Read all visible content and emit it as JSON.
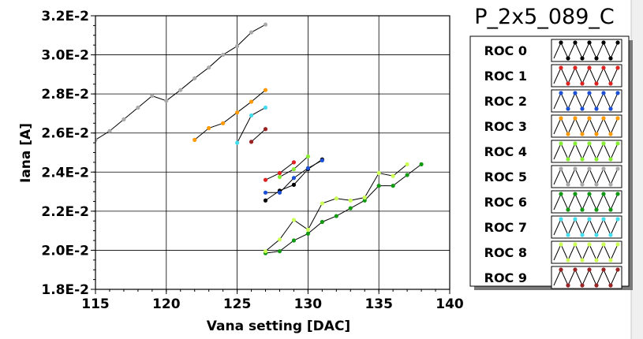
{
  "chart_data": {
    "type": "scatter",
    "title": "P_2x5_089_C",
    "xlabel": "Vana setting [DAC]",
    "ylabel": "Iana [A]",
    "xlim": [
      115,
      140
    ],
    "ylim": [
      0.018,
      0.032
    ],
    "x_ticks": [
      115,
      120,
      125,
      130,
      135,
      140
    ],
    "x_tick_labels": [
      "115",
      "120",
      "125",
      "130",
      "135",
      "140"
    ],
    "y_ticks": [
      0.018,
      0.02,
      0.022,
      0.024,
      0.026,
      0.028,
      0.03,
      0.032
    ],
    "y_tick_labels": [
      "1.8E-2",
      "2.0E-2",
      "2.2E-2",
      "2.4E-2",
      "2.6E-2",
      "2.8E-2",
      "3.0E-2",
      "3.2E-2"
    ],
    "grid": true,
    "legend_position": "right",
    "series": [
      {
        "name": "ROC 0",
        "color": "#000000",
        "x": [
          127,
          128,
          129,
          130,
          131
        ],
        "y": [
          0.02255,
          0.02305,
          0.02335,
          0.02415,
          0.02465
        ]
      },
      {
        "name": "ROC 1",
        "color": "#dd2222",
        "x": [
          127,
          128,
          129
        ],
        "y": [
          0.0236,
          0.02395,
          0.0245
        ]
      },
      {
        "name": "ROC 2",
        "color": "#1a4fd6",
        "x": [
          127,
          128,
          129,
          130,
          131
        ],
        "y": [
          0.02295,
          0.02295,
          0.0237,
          0.0242,
          0.0246
        ]
      },
      {
        "name": "ROC 3",
        "color": "#ff9900",
        "x": [
          122,
          123,
          124,
          125,
          126,
          127
        ],
        "y": [
          0.02565,
          0.02625,
          0.0265,
          0.02705,
          0.0276,
          0.0282
        ]
      },
      {
        "name": "ROC 4",
        "color": "#88ee33",
        "x": [
          128,
          129,
          130
        ],
        "y": [
          0.02375,
          0.02415,
          0.0248
        ]
      },
      {
        "name": "ROC 5",
        "color": "#aaaaaa",
        "x": [
          115,
          116,
          117,
          118,
          119,
          120,
          121,
          122,
          123,
          124,
          125,
          126,
          127
        ],
        "y": [
          0.02565,
          0.0261,
          0.0267,
          0.0273,
          0.0279,
          0.02765,
          0.0282,
          0.0288,
          0.02935,
          0.03,
          0.03045,
          0.03115,
          0.03155
        ]
      },
      {
        "name": "ROC 6",
        "color": "#119911",
        "x": [
          127,
          128,
          129,
          130,
          131,
          132,
          133,
          134,
          135,
          136,
          137,
          138
        ],
        "y": [
          0.01985,
          0.01995,
          0.0205,
          0.02085,
          0.02145,
          0.02175,
          0.02215,
          0.02255,
          0.0233,
          0.0233,
          0.02385,
          0.0244
        ]
      },
      {
        "name": "ROC 7",
        "color": "#44ddee",
        "x": [
          125,
          126,
          127
        ],
        "y": [
          0.0255,
          0.0269,
          0.0273
        ]
      },
      {
        "name": "ROC 8",
        "color": "#ccff55",
        "x": [
          127,
          128,
          129,
          130,
          131,
          132,
          133,
          134,
          135,
          136,
          137
        ],
        "y": [
          0.01995,
          0.02055,
          0.02155,
          0.02105,
          0.0224,
          0.02265,
          0.02255,
          0.0227,
          0.02395,
          0.0238,
          0.0244
        ]
      },
      {
        "name": "ROC 9",
        "color": "#992222",
        "x": [
          126,
          127
        ],
        "y": [
          0.02555,
          0.0262
        ]
      }
    ]
  }
}
